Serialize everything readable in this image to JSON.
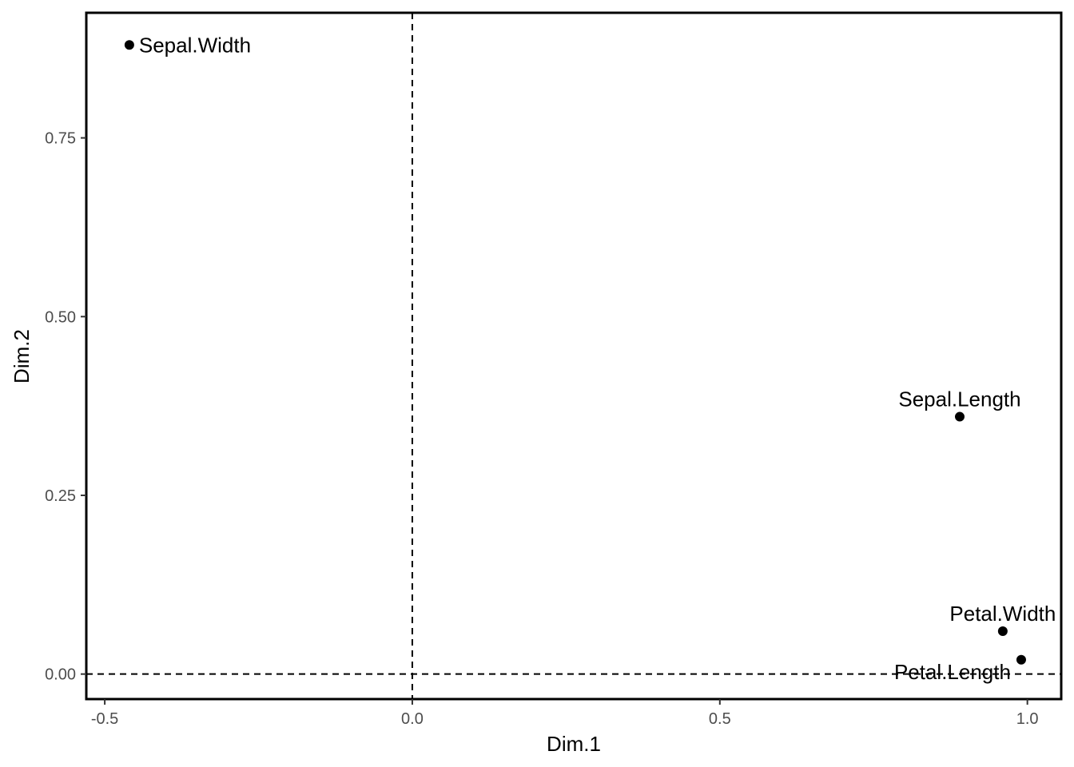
{
  "chart_data": {
    "type": "scatter",
    "xlabel": "Dim.1",
    "ylabel": "Dim.2",
    "xlim": [
      -0.53,
      1.055
    ],
    "ylim": [
      -0.035,
      0.925
    ],
    "x_ticks": [
      -0.5,
      0.0,
      0.5,
      1.0
    ],
    "x_tick_labels": [
      "-0.5",
      "0.0",
      "0.5",
      "1.0"
    ],
    "y_ticks": [
      0.0,
      0.25,
      0.5,
      0.75
    ],
    "y_tick_labels": [
      "0.00",
      "0.25",
      "0.50",
      "0.75"
    ],
    "reference_lines": {
      "x": 0,
      "y": 0,
      "style": "dashed"
    },
    "grid": false,
    "points": [
      {
        "label": "Sepal.Length",
        "x": 0.89,
        "y": 0.36,
        "label_position": "above"
      },
      {
        "label": "Sepal.Width",
        "x": -0.46,
        "y": 0.88,
        "label_position": "right"
      },
      {
        "label": "Petal.Length",
        "x": 0.99,
        "y": 0.02,
        "label_position": "below-left"
      },
      {
        "label": "Petal.Width",
        "x": 0.96,
        "y": 0.06,
        "label_position": "above"
      }
    ],
    "colors": {
      "point": "#000000",
      "reference_line": "#000000",
      "panel_border": "#000000"
    }
  }
}
